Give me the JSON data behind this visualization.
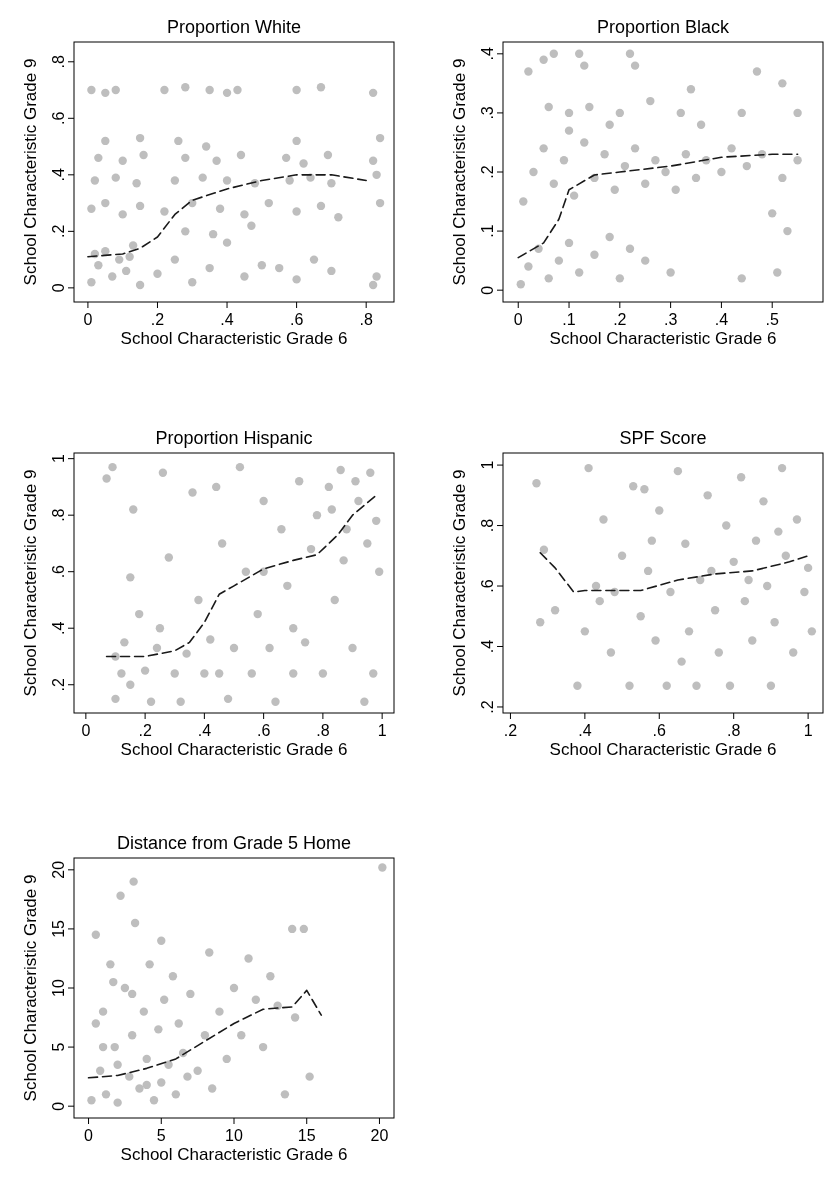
{
  "chart_data": [
    {
      "type": "scatter",
      "title": "Proportion White",
      "xlabel": "School Characteristic Grade 6",
      "ylabel": "School Characteristic Grade 9",
      "xlim": [
        -0.04,
        0.88
      ],
      "ylim": [
        -0.05,
        0.87
      ],
      "xticks": [
        0,
        {
          "value": 0.2,
          "label": ".2"
        },
        {
          "value": 0.4,
          "label": ".4"
        },
        {
          "value": 0.6,
          "label": ".6"
        },
        {
          "value": 0.8,
          "label": ".8"
        }
      ],
      "yticks": [
        0,
        {
          "value": 0.2,
          "label": ".2"
        },
        {
          "value": 0.4,
          "label": ".4"
        },
        {
          "value": 0.6,
          "label": ".6"
        },
        {
          "value": 0.8,
          "label": ".8"
        }
      ],
      "series": [
        {
          "type": "scatter",
          "color": "#bebebe",
          "marker": "circle",
          "x": [
            0.01,
            0.03,
            0.05,
            0.07,
            0.09,
            0.11,
            0.13,
            0.15,
            0.02,
            0.12,
            0.2,
            0.25,
            0.3,
            0.35,
            0.4,
            0.45,
            0.5,
            0.55,
            0.6,
            0.65,
            0.7,
            0.82,
            0.83,
            0.01,
            0.05,
            0.1,
            0.15,
            0.22,
            0.3,
            0.38,
            0.45,
            0.52,
            0.6,
            0.67,
            0.72,
            0.84,
            0.02,
            0.08,
            0.14,
            0.25,
            0.33,
            0.4,
            0.48,
            0.58,
            0.64,
            0.7,
            0.83,
            0.03,
            0.1,
            0.16,
            0.28,
            0.37,
            0.44,
            0.57,
            0.62,
            0.69,
            0.82,
            0.05,
            0.15,
            0.26,
            0.34,
            0.6,
            0.84,
            0.01,
            0.05,
            0.08,
            0.22,
            0.28,
            0.35,
            0.4,
            0.43,
            0.6,
            0.67,
            0.82,
            0.28,
            0.36,
            0.47
          ],
          "values": [
            0.02,
            0.08,
            0.13,
            0.04,
            0.1,
            0.06,
            0.15,
            0.01,
            0.12,
            0.11,
            0.05,
            0.1,
            0.02,
            0.07,
            0.16,
            0.04,
            0.08,
            0.07,
            0.03,
            0.1,
            0.06,
            0.01,
            0.04,
            0.28,
            0.3,
            0.26,
            0.29,
            0.27,
            0.3,
            0.28,
            0.26,
            0.3,
            0.27,
            0.29,
            0.25,
            0.3,
            0.38,
            0.39,
            0.37,
            0.38,
            0.39,
            0.38,
            0.37,
            0.38,
            0.39,
            0.37,
            0.4,
            0.46,
            0.45,
            0.47,
            0.46,
            0.45,
            0.47,
            0.46,
            0.44,
            0.47,
            0.45,
            0.52,
            0.53,
            0.52,
            0.5,
            0.52,
            0.53,
            0.7,
            0.69,
            0.7,
            0.7,
            0.71,
            0.7,
            0.69,
            0.7,
            0.7,
            0.71,
            0.69,
            0.2,
            0.19,
            0.22
          ]
        },
        {
          "type": "line",
          "color": "#1a1a1a",
          "line_style": "dashed",
          "x": [
            0,
            0.1,
            0.15,
            0.2,
            0.25,
            0.3,
            0.4,
            0.5,
            0.6,
            0.7,
            0.8
          ],
          "values": [
            0.11,
            0.12,
            0.14,
            0.18,
            0.26,
            0.31,
            0.35,
            0.38,
            0.4,
            0.4,
            0.38
          ]
        }
      ]
    },
    {
      "type": "scatter",
      "title": "Proportion Black",
      "xlabel": "School Characteristic Grade 6",
      "ylabel": "School Characteristic Grade 9",
      "xlim": [
        -0.03,
        0.6
      ],
      "ylim": [
        -0.02,
        0.42
      ],
      "xticks": [
        0,
        {
          "value": 0.1,
          "label": ".1"
        },
        {
          "value": 0.2,
          "label": ".2"
        },
        {
          "value": 0.3,
          "label": ".3"
        },
        {
          "value": 0.4,
          "label": ".4"
        },
        {
          "value": 0.5,
          "label": ".5"
        }
      ],
      "yticks": [
        0,
        {
          "value": 0.1,
          "label": ".1"
        },
        {
          "value": 0.2,
          "label": ".2"
        },
        {
          "value": 0.3,
          "label": ".3"
        },
        {
          "value": 0.4,
          "label": ".4"
        }
      ],
      "series": [
        {
          "type": "scatter",
          "color": "#bebebe",
          "marker": "circle",
          "x": [
            0.005,
            0.02,
            0.04,
            0.06,
            0.08,
            0.1,
            0.12,
            0.15,
            0.2,
            0.25,
            0.3,
            0.18,
            0.22,
            0.01,
            0.03,
            0.05,
            0.07,
            0.09,
            0.11,
            0.13,
            0.15,
            0.17,
            0.19,
            0.21,
            0.23,
            0.25,
            0.27,
            0.29,
            0.31,
            0.33,
            0.35,
            0.37,
            0.4,
            0.42,
            0.45,
            0.48,
            0.5,
            0.52,
            0.55,
            0.06,
            0.1,
            0.14,
            0.2,
            0.26,
            0.32,
            0.34,
            0.44,
            0.55,
            0.02,
            0.05,
            0.07,
            0.12,
            0.13,
            0.22,
            0.23,
            0.47,
            0.52,
            0.36,
            0.1,
            0.18,
            0.44,
            0.51,
            0.53
          ],
          "values": [
            0.01,
            0.04,
            0.07,
            0.02,
            0.05,
            0.08,
            0.03,
            0.06,
            0.02,
            0.05,
            0.03,
            0.09,
            0.07,
            0.15,
            0.2,
            0.24,
            0.18,
            0.22,
            0.16,
            0.25,
            0.19,
            0.23,
            0.17,
            0.21,
            0.24,
            0.18,
            0.22,
            0.2,
            0.17,
            0.23,
            0.19,
            0.22,
            0.2,
            0.24,
            0.21,
            0.23,
            0.13,
            0.19,
            0.22,
            0.31,
            0.3,
            0.31,
            0.3,
            0.32,
            0.3,
            0.34,
            0.3,
            0.3,
            0.37,
            0.39,
            0.4,
            0.4,
            0.38,
            0.4,
            0.38,
            0.37,
            0.35,
            0.28,
            0.27,
            0.28,
            0.02,
            0.03,
            0.1
          ]
        },
        {
          "type": "line",
          "color": "#1a1a1a",
          "line_style": "dashed",
          "x": [
            0,
            0.05,
            0.08,
            0.1,
            0.15,
            0.2,
            0.3,
            0.4,
            0.5,
            0.55
          ],
          "values": [
            0.055,
            0.08,
            0.12,
            0.17,
            0.195,
            0.2,
            0.21,
            0.225,
            0.23,
            0.23
          ]
        }
      ]
    },
    {
      "type": "scatter",
      "title": "Proportion Hispanic",
      "xlabel": "School Characteristic Grade 6",
      "ylabel": "School Characteristic Grade 9",
      "xlim": [
        -0.04,
        1.04
      ],
      "ylim": [
        0.1,
        1.02
      ],
      "xticks": [
        0,
        {
          "value": 0.2,
          "label": ".2"
        },
        {
          "value": 0.4,
          "label": ".4"
        },
        {
          "value": 0.6,
          "label": ".6"
        },
        {
          "value": 0.8,
          "label": ".8"
        },
        1
      ],
      "yticks": [
        {
          "value": 0.2,
          "label": ".2"
        },
        {
          "value": 0.4,
          "label": ".4"
        },
        {
          "value": 0.6,
          "label": ".6"
        },
        {
          "value": 0.8,
          "label": ".8"
        },
        1
      ],
      "series": [
        {
          "type": "scatter",
          "color": "#bebebe",
          "marker": "circle",
          "x": [
            0.07,
            0.09,
            0.1,
            0.12,
            0.1,
            0.13,
            0.15,
            0.16,
            0.18,
            0.2,
            0.22,
            0.24,
            0.26,
            0.28,
            0.3,
            0.32,
            0.34,
            0.36,
            0.38,
            0.4,
            0.42,
            0.44,
            0.46,
            0.48,
            0.5,
            0.52,
            0.54,
            0.56,
            0.58,
            0.6,
            0.62,
            0.64,
            0.66,
            0.68,
            0.7,
            0.72,
            0.74,
            0.76,
            0.78,
            0.8,
            0.82,
            0.84,
            0.86,
            0.88,
            0.9,
            0.92,
            0.94,
            0.96,
            0.98,
            0.99,
            0.97,
            0.91,
            0.87,
            0.83,
            0.95,
            0.6,
            0.7,
            0.45,
            0.25,
            0.15
          ],
          "values": [
            0.93,
            0.97,
            0.15,
            0.24,
            0.3,
            0.35,
            0.58,
            0.82,
            0.45,
            0.25,
            0.14,
            0.33,
            0.95,
            0.65,
            0.24,
            0.14,
            0.31,
            0.88,
            0.5,
            0.24,
            0.36,
            0.9,
            0.7,
            0.15,
            0.33,
            0.97,
            0.6,
            0.24,
            0.45,
            0.85,
            0.33,
            0.14,
            0.75,
            0.55,
            0.24,
            0.92,
            0.35,
            0.68,
            0.8,
            0.24,
            0.9,
            0.5,
            0.96,
            0.75,
            0.33,
            0.85,
            0.14,
            0.95,
            0.78,
            0.6,
            0.24,
            0.92,
            0.64,
            0.82,
            0.7,
            0.6,
            0.4,
            0.24,
            0.4,
            0.2
          ]
        },
        {
          "type": "line",
          "color": "#1a1a1a",
          "line_style": "dashed",
          "x": [
            0.07,
            0.2,
            0.3,
            0.35,
            0.4,
            0.45,
            0.5,
            0.6,
            0.7,
            0.78,
            0.85,
            0.9,
            0.98
          ],
          "values": [
            0.3,
            0.3,
            0.32,
            0.35,
            0.42,
            0.52,
            0.55,
            0.61,
            0.64,
            0.66,
            0.73,
            0.8,
            0.87
          ]
        }
      ]
    },
    {
      "type": "scatter",
      "title": "SPF Score",
      "xlabel": "School Characteristic Grade 6",
      "ylabel": "School Characteristic Grade 9",
      "xlim": [
        0.18,
        1.04
      ],
      "ylim": [
        0.18,
        1.04
      ],
      "xticks": [
        {
          "value": 0.2,
          "label": ".2"
        },
        {
          "value": 0.4,
          "label": ".4"
        },
        {
          "value": 0.6,
          "label": ".6"
        },
        {
          "value": 0.8,
          "label": ".8"
        },
        1
      ],
      "yticks": [
        {
          "value": 0.2,
          "label": ".2"
        },
        {
          "value": 0.4,
          "label": ".4"
        },
        {
          "value": 0.6,
          "label": ".6"
        },
        {
          "value": 0.8,
          "label": ".8"
        },
        1
      ],
      "series": [
        {
          "type": "scatter",
          "color": "#bebebe",
          "marker": "circle",
          "x": [
            0.27,
            0.28,
            0.29,
            0.32,
            0.38,
            0.4,
            0.41,
            0.43,
            0.45,
            0.47,
            0.5,
            0.52,
            0.53,
            0.55,
            0.57,
            0.59,
            0.6,
            0.62,
            0.63,
            0.65,
            0.67,
            0.68,
            0.7,
            0.71,
            0.73,
            0.75,
            0.76,
            0.78,
            0.79,
            0.8,
            0.82,
            0.83,
            0.85,
            0.86,
            0.88,
            0.89,
            0.9,
            0.91,
            0.93,
            0.94,
            0.96,
            0.97,
            0.99,
            1.0,
            1.01,
            0.48,
            0.58,
            0.66,
            0.74,
            0.84,
            0.92,
            0.56,
            0.44
          ],
          "values": [
            0.94,
            0.48,
            0.72,
            0.52,
            0.27,
            0.45,
            0.99,
            0.6,
            0.82,
            0.38,
            0.7,
            0.27,
            0.93,
            0.5,
            0.65,
            0.42,
            0.85,
            0.27,
            0.58,
            0.98,
            0.74,
            0.45,
            0.27,
            0.62,
            0.9,
            0.52,
            0.38,
            0.8,
            0.27,
            0.68,
            0.96,
            0.55,
            0.42,
            0.75,
            0.88,
            0.6,
            0.27,
            0.48,
            0.99,
            0.7,
            0.38,
            0.82,
            0.58,
            0.66,
            0.45,
            0.58,
            0.75,
            0.35,
            0.65,
            0.62,
            0.78,
            0.92,
            0.55
          ]
        },
        {
          "type": "line",
          "color": "#1a1a1a",
          "line_style": "dashed",
          "x": [
            0.28,
            0.32,
            0.37,
            0.4,
            0.55,
            0.65,
            0.75,
            0.85,
            0.95,
            1
          ],
          "values": [
            0.71,
            0.66,
            0.58,
            0.585,
            0.585,
            0.62,
            0.64,
            0.65,
            0.68,
            0.7
          ]
        }
      ]
    },
    {
      "type": "scatter",
      "title": "Distance from Grade 5 Home",
      "xlabel": "School Characteristic Grade 6",
      "ylabel": "School Characteristic Grade 9",
      "xlim": [
        -1,
        21
      ],
      "ylim": [
        -1,
        21
      ],
      "xticks": [
        0,
        5,
        10,
        15,
        20
      ],
      "yticks": [
        0,
        5,
        10,
        15,
        20
      ],
      "series": [
        {
          "type": "scatter",
          "color": "#bebebe",
          "marker": "circle",
          "x": [
            0.2,
            0.5,
            0.8,
            1,
            1.2,
            1.5,
            1.8,
            2,
            2.2,
            2.5,
            2.8,
            3,
            3.2,
            3.5,
            3.8,
            4,
            4.2,
            4.5,
            4.8,
            5,
            5.2,
            5.5,
            5.8,
            6,
            6.2,
            6.5,
            6.8,
            3.1,
            7,
            7.5,
            8,
            8.3,
            8.5,
            9,
            9.5,
            10,
            10.5,
            11,
            11.5,
            12,
            12.5,
            13,
            13.5,
            14,
            14.2,
            14.8,
            15.2,
            20.2,
            1,
            2,
            3,
            4,
            0.5,
            1.7,
            5
          ],
          "values": [
            0.5,
            14.5,
            3,
            8,
            1,
            12,
            5,
            0.3,
            17.8,
            10,
            2.5,
            6,
            15.5,
            1.5,
            8,
            4,
            12,
            0.5,
            6.5,
            2,
            9,
            3.5,
            11,
            1,
            7,
            4.5,
            2.5,
            19,
            9.5,
            3,
            6,
            13,
            1.5,
            8,
            4,
            10,
            6,
            12.5,
            9,
            5,
            11,
            8.5,
            1,
            15,
            7.5,
            15,
            2.5,
            20.2,
            5,
            3.5,
            9.5,
            1.8,
            7,
            10.5,
            14
          ]
        },
        {
          "type": "line",
          "color": "#1a1a1a",
          "line_style": "dashed",
          "x": [
            0,
            2,
            4,
            6,
            8,
            10,
            12,
            14,
            15,
            16
          ],
          "values": [
            2.4,
            2.6,
            3.2,
            4,
            5.5,
            7,
            8.2,
            8.4,
            9.8,
            7.7
          ]
        }
      ]
    }
  ]
}
